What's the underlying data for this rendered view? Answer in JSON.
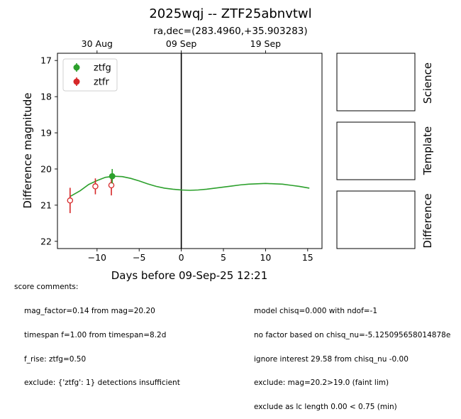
{
  "chart_data": {
    "type": "scatter",
    "title": "2025wqj -- ZTF25abnvtwl",
    "subtitle": "ra,dec=(283.4960,+35.903283)",
    "xlabel": "Days before 09-Sep-25 12:21",
    "ylabel": "Difference magnitude",
    "xlim": [
      -14.7,
      16.7
    ],
    "ylim": [
      22.2,
      16.8
    ],
    "y_inverted": true,
    "x_ticks": [
      -10,
      -5,
      0,
      5,
      10,
      15
    ],
    "x_tick_labels": [
      "−10",
      "−5",
      "0",
      "5",
      "10",
      "15"
    ],
    "y_ticks": [
      17,
      18,
      19,
      20,
      21,
      22
    ],
    "y_tick_labels": [
      "17",
      "18",
      "19",
      "20",
      "21",
      "22"
    ],
    "top_axis_ticks": [
      {
        "x": -10,
        "label": "30 Aug"
      },
      {
        "x": 0,
        "label": "09 Sep"
      },
      {
        "x": 10,
        "label": "19 Sep"
      }
    ],
    "vertical_line_x": 0,
    "legend_position": "upper-left",
    "series": [
      {
        "name": "ztfg",
        "color": "#2ca02c",
        "marker": "filled-circle",
        "points": [
          {
            "x": -8.2,
            "y": 20.2,
            "err": 0.2
          }
        ]
      },
      {
        "name": "ztfr",
        "color": "#d62728",
        "marker": "open-circle",
        "points": [
          {
            "x": -13.2,
            "y": 20.87,
            "err": 0.35
          },
          {
            "x": -10.2,
            "y": 20.48,
            "err": 0.22
          },
          {
            "x": -8.3,
            "y": 20.45,
            "err": 0.28
          }
        ]
      }
    ],
    "model_curve": {
      "color": "#2ca02c",
      "points": [
        {
          "x": -13.2,
          "y": 20.76
        },
        {
          "x": -12.0,
          "y": 20.6
        },
        {
          "x": -11.0,
          "y": 20.43
        },
        {
          "x": -10.0,
          "y": 20.32
        },
        {
          "x": -9.0,
          "y": 20.23
        },
        {
          "x": -8.0,
          "y": 20.2
        },
        {
          "x": -7.0,
          "y": 20.21
        },
        {
          "x": -6.0,
          "y": 20.26
        },
        {
          "x": -5.0,
          "y": 20.33
        },
        {
          "x": -4.0,
          "y": 20.41
        },
        {
          "x": -3.0,
          "y": 20.48
        },
        {
          "x": -2.0,
          "y": 20.53
        },
        {
          "x": -1.0,
          "y": 20.56
        },
        {
          "x": 0.0,
          "y": 20.58
        },
        {
          "x": 1.0,
          "y": 20.59
        },
        {
          "x": 2.0,
          "y": 20.58
        },
        {
          "x": 3.0,
          "y": 20.56
        },
        {
          "x": 4.0,
          "y": 20.53
        },
        {
          "x": 5.0,
          "y": 20.5
        },
        {
          "x": 6.0,
          "y": 20.47
        },
        {
          "x": 7.0,
          "y": 20.44
        },
        {
          "x": 8.0,
          "y": 20.42
        },
        {
          "x": 9.0,
          "y": 20.41
        },
        {
          "x": 10.0,
          "y": 20.4
        },
        {
          "x": 11.0,
          "y": 20.41
        },
        {
          "x": 12.0,
          "y": 20.42
        },
        {
          "x": 13.0,
          "y": 20.45
        },
        {
          "x": 14.0,
          "y": 20.48
        },
        {
          "x": 15.2,
          "y": 20.53
        }
      ]
    }
  },
  "panels": [
    {
      "label": "Science"
    },
    {
      "label": "Template"
    },
    {
      "label": "Difference"
    }
  ],
  "comments": {
    "header": "score comments:",
    "left": [
      "mag_factor=0.14 from mag=20.20",
      "timespan f=1.00 from timespan=8.2d",
      "f_rise: ztfg=0.50",
      "exclude: {'ztfg': 1} detections insufficient"
    ],
    "right": [
      "model chisq=0.000 with ndof=-1",
      "no factor based on chisq_nu=-5.125095658014878e",
      "ignore interest 29.58 from chisq_nu -0.00",
      "exclude: mag=20.2>19.0 (faint lim)",
      "exclude as lc length 0.00 < 0.75 (min)"
    ]
  }
}
